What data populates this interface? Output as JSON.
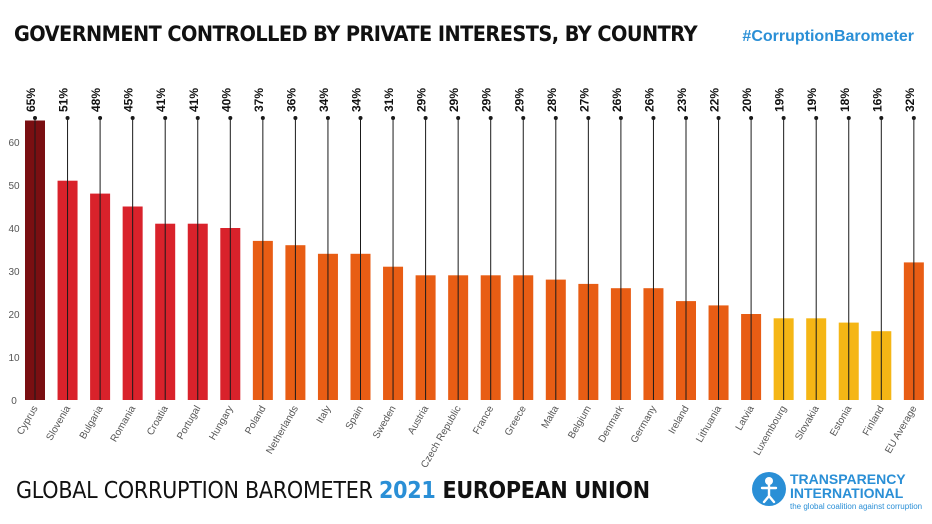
{
  "header": {
    "title": "GOVERNMENT CONTROLLED BY PRIVATE INTERESTS, BY COUNTRY",
    "hashtag": "#CorruptionBarometer"
  },
  "footer": {
    "prefix": "GLOBAL CORRUPTION BAROMETER ",
    "year": "2021",
    "region": " EUROPEAN UNION"
  },
  "logo": {
    "name_line1": "TRANSPARENCY",
    "name_line2": "INTERNATIONAL",
    "tagline": "the global coalition against corruption"
  },
  "chart_data": {
    "type": "bar",
    "categories": [
      "Cyprus",
      "Slovenia",
      "Bulgaria",
      "Romania",
      "Croatia",
      "Portugal",
      "Hungary",
      "Poland",
      "Netherlands",
      "Italy",
      "Spain",
      "Sweden",
      "Austria",
      "Czech Republic",
      "France",
      "Greece",
      "Malta",
      "Belgium",
      "Denmark",
      "Germany",
      "Ireland",
      "Lithuania",
      "Latvia",
      "Luxembourg",
      "Slovakia",
      "Estonia",
      "Finland",
      "EU Average"
    ],
    "values": [
      65,
      51,
      48,
      45,
      41,
      41,
      40,
      37,
      36,
      34,
      34,
      31,
      29,
      29,
      29,
      29,
      28,
      27,
      26,
      26,
      23,
      22,
      20,
      19,
      19,
      18,
      16,
      32
    ],
    "labels": [
      "65%",
      "51%",
      "48%",
      "45%",
      "41%",
      "41%",
      "40%",
      "37%",
      "36%",
      "34%",
      "34%",
      "31%",
      "29%",
      "29%",
      "29%",
      "29%",
      "28%",
      "27%",
      "26%",
      "26%",
      "23%",
      "22%",
      "20%",
      "19%",
      "19%",
      "18%",
      "16%",
      "32%"
    ],
    "colors": [
      "#7a0f12",
      "#d9222b",
      "#d9222b",
      "#d9222b",
      "#d9222b",
      "#d9222b",
      "#d9222b",
      "#e85d14",
      "#e85d14",
      "#e85d14",
      "#e85d14",
      "#e85d14",
      "#e85d14",
      "#e85d14",
      "#e85d14",
      "#e85d14",
      "#e85d14",
      "#e85d14",
      "#e85d14",
      "#e85d14",
      "#e85d14",
      "#e85d14",
      "#e85d14",
      "#f5b615",
      "#f5b615",
      "#f5b615",
      "#f5b615",
      "#e85d14"
    ],
    "yticks": [
      0,
      10,
      20,
      30,
      40,
      50,
      60
    ],
    "ylim": [
      0,
      67
    ],
    "grid": false,
    "legend": "none"
  }
}
